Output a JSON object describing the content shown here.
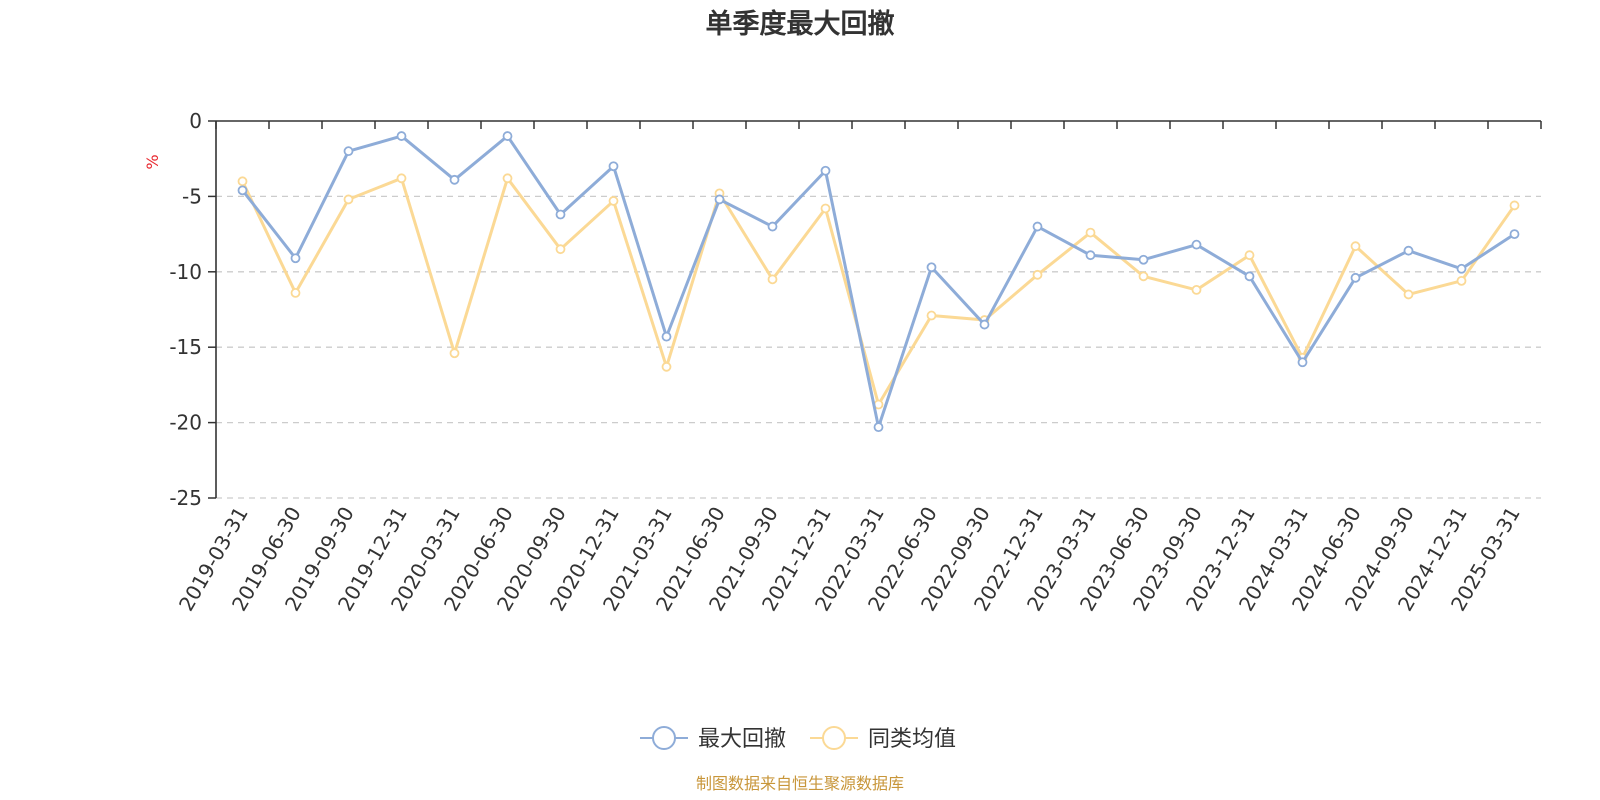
{
  "chart_data": {
    "type": "line",
    "title": "单季度最大回撤",
    "ylabel": "%",
    "ylim": [
      -25,
      0
    ],
    "yticks": [
      0,
      -5,
      -10,
      -15,
      -20,
      -25
    ],
    "grid": true,
    "legend_position": "bottom-center",
    "categories": [
      "2019-03-31",
      "2019-06-30",
      "2019-09-30",
      "2019-12-31",
      "2020-03-31",
      "2020-06-30",
      "2020-09-30",
      "2020-12-31",
      "2021-03-31",
      "2021-06-30",
      "2021-09-30",
      "2021-12-31",
      "2022-03-31",
      "2022-06-30",
      "2022-09-30",
      "2022-12-31",
      "2023-03-31",
      "2023-06-30",
      "2023-09-30",
      "2023-12-31",
      "2024-03-31",
      "2024-06-30",
      "2024-09-30",
      "2024-12-31",
      "2025-03-31"
    ],
    "series": [
      {
        "name": "最大回撤",
        "color": "#8eacd8",
        "values": [
          -4.6,
          -9.1,
          -2.0,
          -1.0,
          -3.9,
          -1.0,
          -6.2,
          -3.0,
          -14.3,
          -5.2,
          -7.0,
          -3.3,
          -20.3,
          -9.7,
          -13.5,
          -7.0,
          -8.9,
          -9.2,
          -8.2,
          -10.3,
          -16.0,
          -10.4,
          -8.6,
          -9.8,
          -7.5
        ]
      },
      {
        "name": "同类均值",
        "color": "#fbd995",
        "values": [
          -4.0,
          -11.4,
          -5.2,
          -3.8,
          -15.4,
          -3.8,
          -8.5,
          -5.3,
          -16.3,
          -4.8,
          -10.5,
          -5.8,
          -18.8,
          -12.9,
          -13.2,
          -10.2,
          -7.4,
          -10.3,
          -11.2,
          -8.9,
          -15.7,
          -8.3,
          -11.5,
          -10.6,
          -5.6
        ]
      }
    ]
  },
  "source_text": "制图数据来自恒生聚源数据库"
}
